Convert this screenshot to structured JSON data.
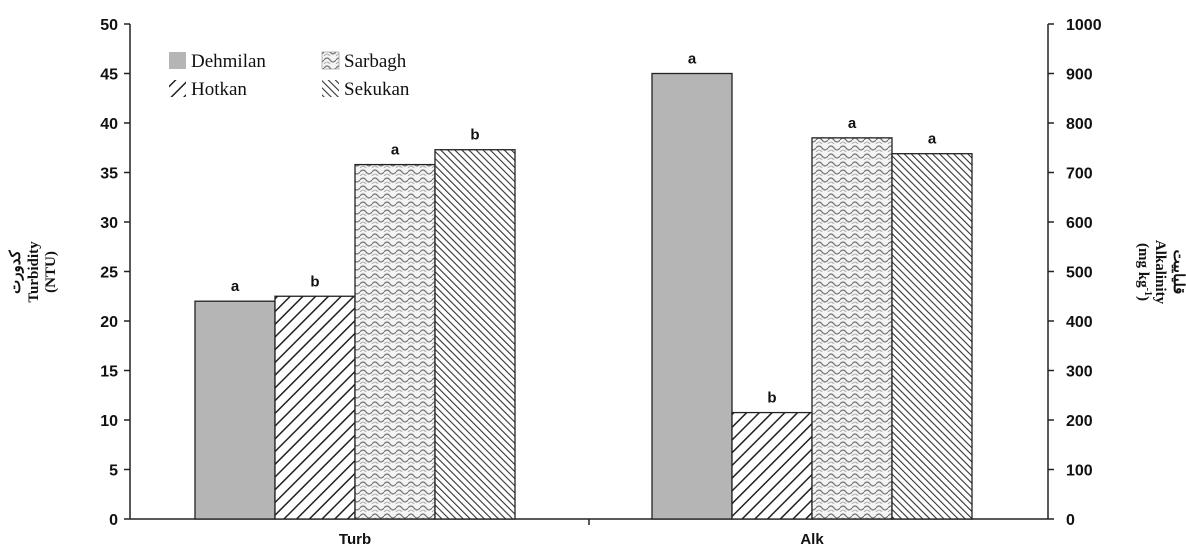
{
  "chart_data": {
    "type": "bar",
    "categories": [
      "Turb",
      "Alk"
    ],
    "series": [
      {
        "name": "Dehmilan",
        "values": [
          22,
          900
        ],
        "labels": [
          "a",
          "a"
        ]
      },
      {
        "name": "Hotkan",
        "values": [
          22.5,
          215
        ],
        "labels": [
          "b",
          "b"
        ]
      },
      {
        "name": "Sarbagh",
        "values": [
          35.8,
          770
        ],
        "labels": [
          "a",
          "a"
        ]
      },
      {
        "name": "Sekukan",
        "values": [
          37.3,
          738
        ],
        "labels": [
          "b",
          "a"
        ]
      }
    ],
    "y_left": {
      "label_fa": "کدورت",
      "label_en": "Turbidity",
      "unit": "(NTU)",
      "ylim": [
        0,
        50
      ],
      "ticks": [
        "0",
        "5",
        "10",
        "15",
        "20",
        "25",
        "30",
        "35",
        "40",
        "45",
        "50"
      ]
    },
    "y_right": {
      "label_fa": "قلیاییت",
      "label_en": "Alkalinity",
      "unit_main": "(mg kg",
      "unit_sup": "-1",
      "unit_close": ")",
      "ylim": [
        0,
        1000
      ],
      "ticks": [
        "0",
        "100",
        "200",
        "300",
        "400",
        "500",
        "600",
        "700",
        "800",
        "900",
        "1000"
      ]
    },
    "legend_position": "top-left",
    "grid": false
  },
  "colors": {
    "dehmilan_fill": "#b5b5b5",
    "bar_stroke": "#222222",
    "pattern_line": "#222222",
    "axis": "#222222"
  }
}
